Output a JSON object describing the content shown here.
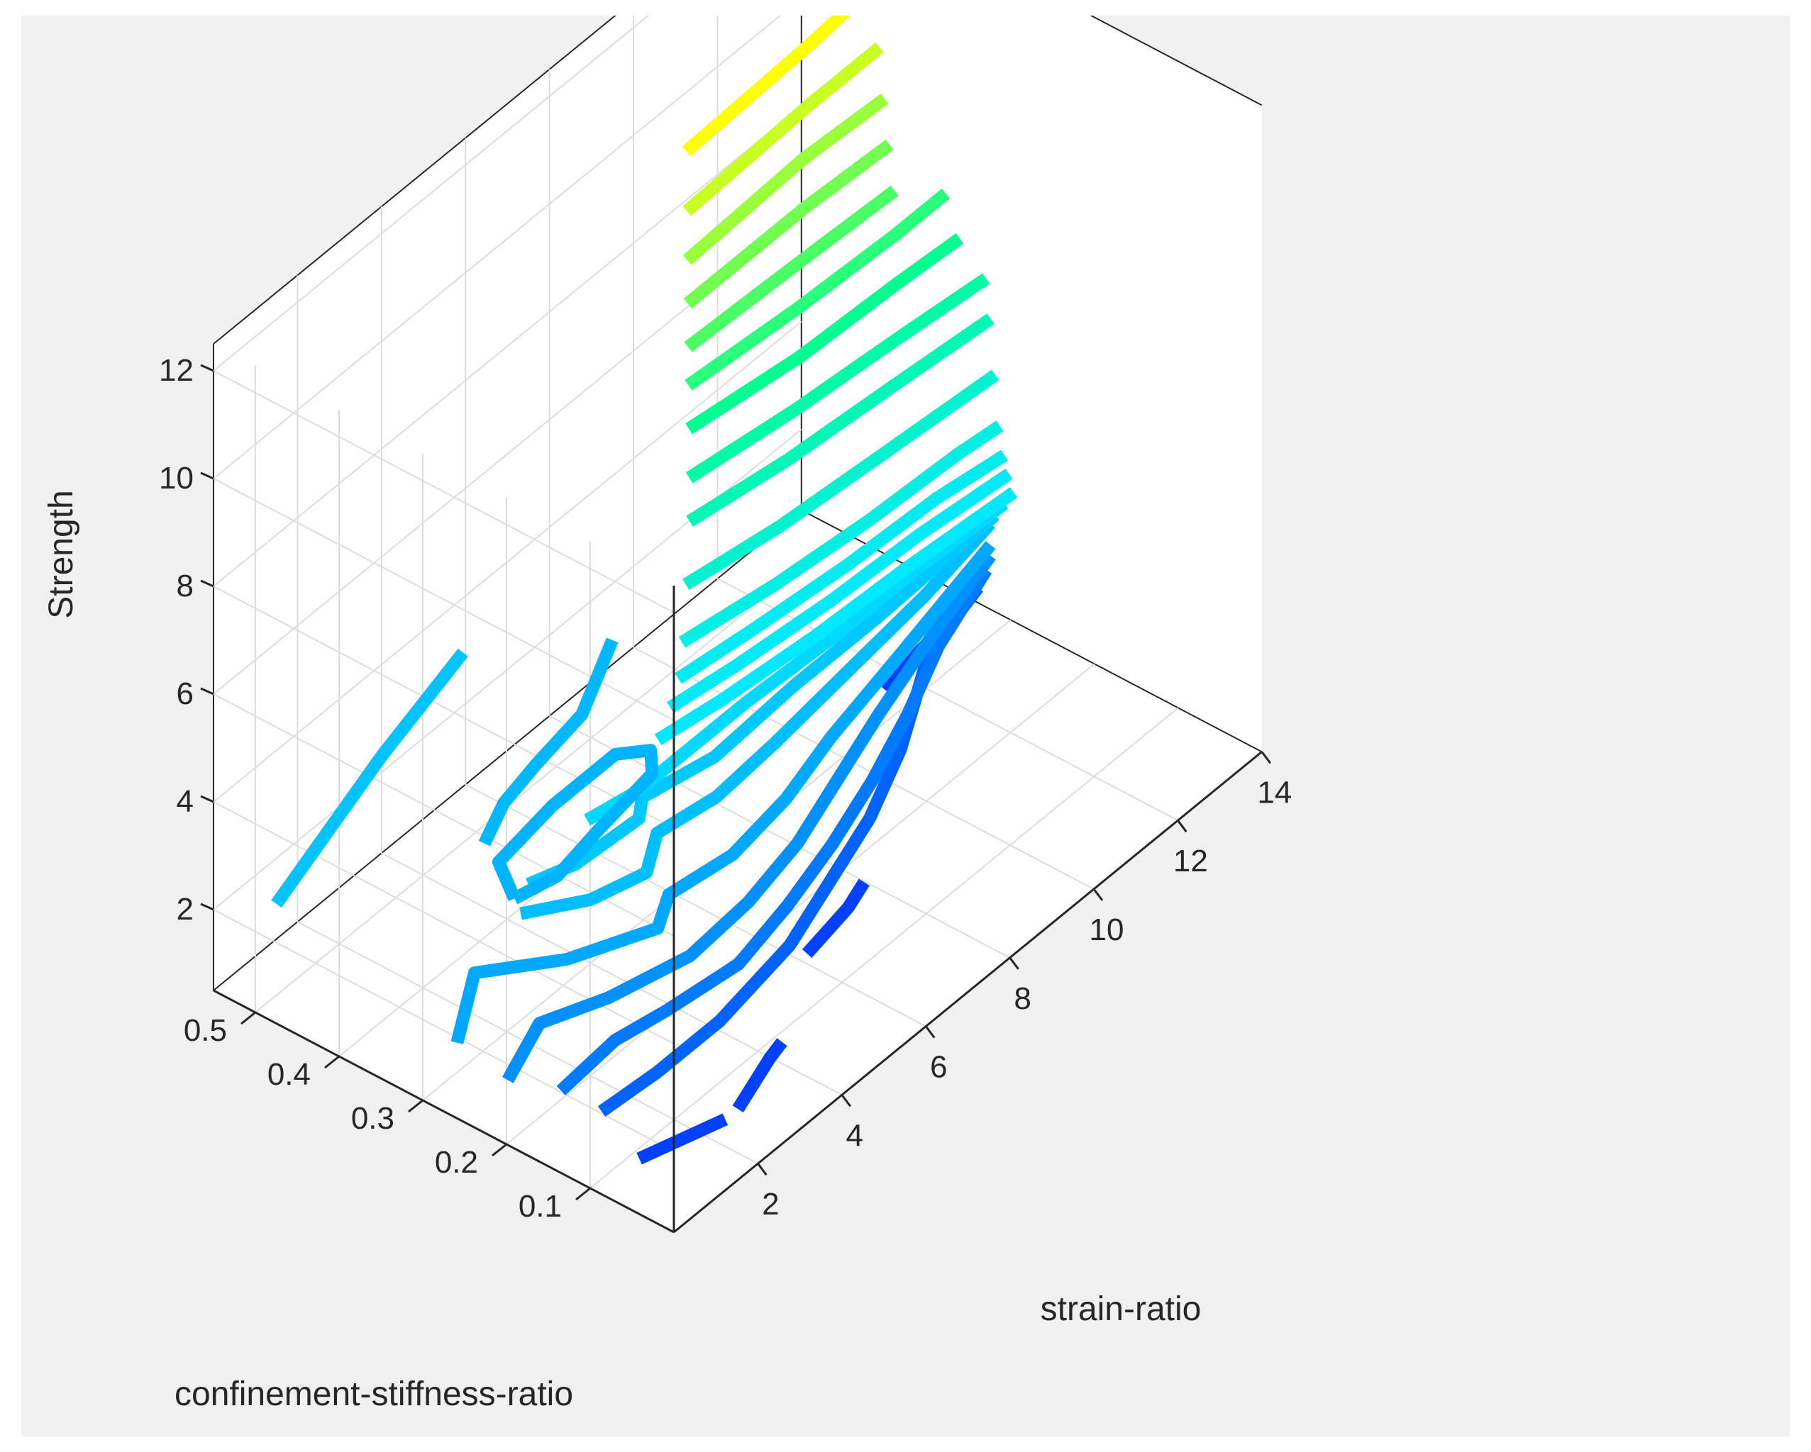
{
  "chart_data": {
    "type": "3d-contour",
    "title": "",
    "xlabel": "strain-ratio",
    "ylabel": "confinement-stiffness-ratio",
    "zlabel": "Strength",
    "xlim": [
      0,
      14
    ],
    "ylim": [
      0,
      0.55
    ],
    "zlim": [
      0.5,
      12.5
    ],
    "x_ticks": [
      "2",
      "4",
      "6",
      "8",
      "10",
      "12",
      "14"
    ],
    "y_ticks": [
      "0.1",
      "0.2",
      "0.3",
      "0.4",
      "0.5"
    ],
    "z_ticks": [
      "2",
      "4",
      "6",
      "8",
      "10",
      "12"
    ],
    "grid": true,
    "box": true,
    "colormap": [
      "#0040ff",
      "#00a8ff",
      "#00e8ff",
      "#00ff90",
      "#ffff00"
    ],
    "contours": [
      {
        "level": 0.9,
        "points": [
          [
            0.6,
            0.13
          ],
          [
            2.1,
            0.08
          ]
        ]
      },
      {
        "level": 0.9,
        "points": [
          [
            2.4,
            0.08
          ],
          [
            3.0,
            0.1
          ],
          [
            3.6,
            0.12
          ],
          [
            4.0,
            0.13
          ]
        ]
      },
      {
        "level": 0.9,
        "points": [
          [
            5.8,
            0.24
          ],
          [
            7.0,
            0.26
          ],
          [
            7.6,
            0.28
          ]
        ]
      },
      {
        "level": 0.9,
        "points": [
          [
            11.2,
            0.56
          ],
          [
            12.2,
            0.58
          ],
          [
            13.5,
            0.6
          ]
        ]
      },
      {
        "level": 1.2,
        "points": [
          [
            0.8,
            0.23
          ],
          [
            2.0,
            0.22
          ],
          [
            3.5,
            0.22
          ],
          [
            5.5,
            0.25
          ],
          [
            7.0,
            0.3
          ],
          [
            8.5,
            0.35
          ],
          [
            10.0,
            0.42
          ],
          [
            11.0,
            0.48
          ],
          [
            12.0,
            0.54
          ],
          [
            13.6,
            0.58
          ]
        ]
      },
      {
        "level": 1.4,
        "points": [
          [
            0.6,
            0.3
          ],
          [
            2.0,
            0.31
          ],
          [
            3.0,
            0.29
          ],
          [
            4.5,
            0.27
          ],
          [
            6.0,
            0.3
          ],
          [
            7.5,
            0.34
          ],
          [
            9.0,
            0.39
          ],
          [
            10.5,
            0.45
          ],
          [
            12.0,
            0.52
          ],
          [
            13.8,
            0.58
          ]
        ]
      },
      {
        "level": 1.6,
        "points": [
          [
            0.1,
            0.37
          ],
          [
            1.4,
            0.42
          ],
          [
            2.5,
            0.37
          ],
          [
            4.0,
            0.33
          ],
          [
            5.5,
            0.34
          ],
          [
            7.0,
            0.37
          ],
          [
            8.5,
            0.42
          ],
          [
            10.0,
            0.47
          ],
          [
            12.0,
            0.53
          ],
          [
            13.9,
            0.58
          ]
        ]
      },
      {
        "level": 1.8,
        "points": [
          [
            0.1,
            0.48
          ],
          [
            1.5,
            0.57
          ],
          [
            2.6,
            0.47
          ],
          [
            4.0,
            0.4
          ],
          [
            4.7,
            0.44
          ],
          [
            6.0,
            0.42
          ],
          [
            7.5,
            0.44
          ],
          [
            9.0,
            0.48
          ],
          [
            11.0,
            0.52
          ],
          [
            13.9,
            0.58
          ]
        ]
      },
      {
        "level": 2.2,
        "points": [
          [
            2.6,
            0.57
          ],
          [
            3.5,
            0.5
          ],
          [
            4.5,
            0.47
          ],
          [
            5.3,
            0.52
          ],
          [
            6.5,
            0.5
          ],
          [
            8.0,
            0.51
          ],
          [
            10.0,
            0.53
          ],
          [
            12.0,
            0.55
          ],
          [
            13.9,
            0.58
          ]
        ]
      },
      {
        "level": 2.4,
        "points": [
          [
            3.0,
            0.59
          ],
          [
            3.8,
            0.56
          ],
          [
            5.2,
            0.55
          ],
          [
            5.6,
            0.58
          ],
          [
            7.0,
            0.55
          ],
          [
            9.0,
            0.56
          ],
          [
            11.0,
            0.56
          ],
          [
            13.9,
            0.57
          ]
        ]
      },
      {
        "level": 2.7,
        "points": [
          [
            4.4,
            0.59
          ],
          [
            5.4,
            0.57
          ],
          [
            6.0,
            0.57
          ],
          [
            8.0,
            0.57
          ],
          [
            10.0,
            0.56
          ],
          [
            12.0,
            0.56
          ],
          [
            13.9,
            0.55
          ]
        ]
      },
      {
        "level": 3.0,
        "points": [
          [
            6.2,
            0.6
          ],
          [
            7.5,
            0.58
          ],
          [
            9.5,
            0.56
          ],
          [
            11.5,
            0.55
          ],
          [
            13.9,
            0.53
          ]
        ]
      },
      {
        "level": 3.3,
        "points": [
          [
            6.6,
            0.61
          ],
          [
            8.0,
            0.59
          ],
          [
            10.0,
            0.57
          ],
          [
            12.0,
            0.56
          ],
          [
            13.9,
            0.54
          ]
        ]
      },
      {
        "level": 3.6,
        "points": [
          [
            6.9,
            0.62
          ],
          [
            8.5,
            0.6
          ],
          [
            10.5,
            0.58
          ],
          [
            12.5,
            0.57
          ],
          [
            13.9,
            0.55
          ]
        ]
      },
      {
        "level": 4.1,
        "points": [
          [
            7.1,
            0.63
          ],
          [
            9.0,
            0.6
          ],
          [
            11.0,
            0.58
          ],
          [
            13.0,
            0.57
          ],
          [
            13.9,
            0.56
          ]
        ]
      },
      {
        "level": 5.0,
        "points": [
          [
            7.3,
            0.64
          ],
          [
            9.2,
            0.61
          ],
          [
            11.5,
            0.59
          ],
          [
            13.9,
            0.57
          ]
        ]
      },
      {
        "level": 6.0,
        "points": [
          [
            7.5,
            0.65
          ],
          [
            9.5,
            0.62
          ],
          [
            11.8,
            0.6
          ],
          [
            13.9,
            0.58
          ]
        ]
      },
      {
        "level": 6.7,
        "points": [
          [
            7.6,
            0.66
          ],
          [
            9.8,
            0.63
          ],
          [
            12.0,
            0.61
          ],
          [
            13.9,
            0.59
          ]
        ]
      },
      {
        "level": 7.5,
        "points": [
          [
            7.7,
            0.67
          ],
          [
            10.0,
            0.64
          ],
          [
            12.2,
            0.63
          ],
          [
            13.6,
            0.62
          ]
        ]
      },
      {
        "level": 8.2,
        "points": [
          [
            7.8,
            0.68
          ],
          [
            10.2,
            0.66
          ],
          [
            12.4,
            0.65
          ],
          [
            13.6,
            0.65
          ]
        ]
      },
      {
        "level": 8.8,
        "points": [
          [
            7.9,
            0.69
          ],
          [
            10.5,
            0.68
          ],
          [
            12.6,
            0.67
          ]
        ]
      },
      {
        "level": 9.5,
        "points": [
          [
            8.0,
            0.7
          ],
          [
            10.8,
            0.7
          ],
          [
            12.7,
            0.69
          ]
        ]
      },
      {
        "level": 10.2,
        "points": [
          [
            8.1,
            0.71
          ],
          [
            11.0,
            0.72
          ],
          [
            12.8,
            0.71
          ]
        ]
      },
      {
        "level": 11.0,
        "points": [
          [
            8.2,
            0.72
          ],
          [
            11.2,
            0.73
          ],
          [
            12.9,
            0.73
          ]
        ]
      },
      {
        "level": 12.0,
        "points": [
          [
            8.3,
            0.73
          ],
          [
            11.4,
            0.74
          ],
          [
            12.9,
            0.75
          ]
        ]
      },
      {
        "level": 2.3,
        "points": [
          [
            0.4,
            0.9
          ],
          [
            4.0,
            1.0
          ],
          [
            6.6,
            1.06
          ]
        ]
      },
      {
        "level": 2.0,
        "points": [
          [
            3.0,
            0.62
          ],
          [
            3.5,
            0.7
          ],
          [
            5.0,
            0.72
          ],
          [
            6.5,
            0.72
          ],
          [
            6.9,
            0.68
          ],
          [
            6.5,
            0.64
          ],
          [
            5.0,
            0.62
          ],
          [
            3.8,
            0.6
          ],
          [
            3.0,
            0.62
          ]
        ]
      },
      {
        "level": 2.1,
        "points": [
          [
            3.6,
            0.74
          ],
          [
            4.5,
            0.78
          ],
          [
            5.5,
            0.8
          ],
          [
            6.8,
            0.82
          ],
          [
            7.6,
            0.86
          ],
          [
            8.4,
            0.9
          ]
        ]
      }
    ]
  }
}
